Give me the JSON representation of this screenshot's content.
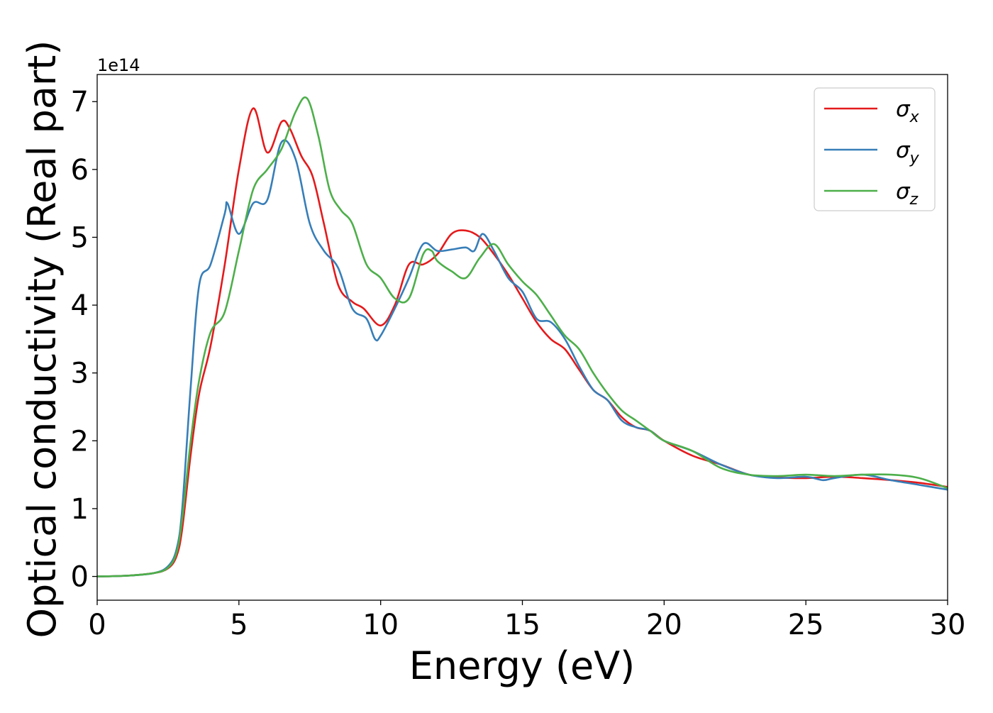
{
  "chart_data": {
    "type": "line",
    "xlabel": "Energy (eV)",
    "ylabel": "Optical conductivity (Real part)",
    "y_multiplier": "1e14",
    "xlim": [
      0,
      30
    ],
    "ylim": [
      -0.35,
      7.4
    ],
    "xticks": [
      "0",
      "5",
      "10",
      "15",
      "20",
      "25",
      "30"
    ],
    "yticks": [
      "0",
      "1",
      "2",
      "3",
      "4",
      "5",
      "6",
      "7"
    ],
    "grid": false,
    "legend_position": "top-right",
    "series": [
      {
        "name": "σx",
        "legend_base": "σ",
        "legend_sub": "x",
        "color": "#e41a1c",
        "x": [
          0,
          1,
          2,
          2.5,
          2.8,
          3.0,
          3.3,
          3.6,
          4.0,
          4.5,
          5.0,
          5.5,
          6.0,
          6.5,
          6.8,
          7.2,
          7.6,
          8.0,
          8.5,
          9.0,
          9.4,
          10.0,
          10.5,
          11.0,
          11.5,
          12.0,
          12.5,
          13.0,
          13.5,
          14.0,
          14.5,
          15.0,
          15.5,
          16.0,
          16.5,
          17.0,
          17.5,
          18.0,
          18.5,
          19.0,
          19.5,
          20.0,
          21.0,
          22.0,
          23.0,
          24.0,
          25.0,
          26.0,
          27.0,
          28.0,
          29.0,
          30.0
        ],
        "y": [
          0,
          0.01,
          0.05,
          0.12,
          0.3,
          0.7,
          1.8,
          2.7,
          3.4,
          4.6,
          6.0,
          6.9,
          6.25,
          6.7,
          6.6,
          6.2,
          5.9,
          5.2,
          4.3,
          4.05,
          3.95,
          3.7,
          4.0,
          4.6,
          4.6,
          4.75,
          5.05,
          5.1,
          5.0,
          4.75,
          4.45,
          4.1,
          3.75,
          3.5,
          3.35,
          3.05,
          2.75,
          2.6,
          2.35,
          2.2,
          2.15,
          2.0,
          1.78,
          1.65,
          1.5,
          1.46,
          1.45,
          1.47,
          1.45,
          1.42,
          1.38,
          1.32
        ]
      },
      {
        "name": "σy",
        "legend_base": "σ",
        "legend_sub": "y",
        "color": "#377eb8",
        "x": [
          0,
          1,
          2,
          2.5,
          2.8,
          3.0,
          3.3,
          3.6,
          4.0,
          4.5,
          4.6,
          5.0,
          5.5,
          6.0,
          6.5,
          7.0,
          7.5,
          8.0,
          8.5,
          9.0,
          9.5,
          9.8,
          10.0,
          10.5,
          11.0,
          11.5,
          12.0,
          12.5,
          13.0,
          13.3,
          13.6,
          14.0,
          14.5,
          15.0,
          15.5,
          16.0,
          16.5,
          17.0,
          17.5,
          18.0,
          18.5,
          19.0,
          19.5,
          20.0,
          21.0,
          22.0,
          23.0,
          24.0,
          25.0,
          25.6,
          26.0,
          27.0,
          28.0,
          29.0,
          30.0
        ],
        "y": [
          0,
          0.01,
          0.05,
          0.15,
          0.4,
          1.0,
          2.8,
          4.3,
          4.6,
          5.35,
          5.5,
          5.05,
          5.5,
          5.55,
          6.4,
          6.15,
          5.2,
          4.8,
          4.55,
          3.95,
          3.8,
          3.5,
          3.55,
          3.95,
          4.4,
          4.9,
          4.8,
          4.82,
          4.85,
          4.8,
          5.05,
          4.8,
          4.4,
          4.2,
          3.8,
          3.75,
          3.5,
          3.1,
          2.75,
          2.6,
          2.3,
          2.2,
          2.15,
          2.0,
          1.85,
          1.65,
          1.5,
          1.45,
          1.47,
          1.42,
          1.45,
          1.5,
          1.42,
          1.35,
          1.28
        ]
      },
      {
        "name": "σz",
        "legend_base": "σ",
        "legend_sub": "z",
        "color": "#4daf4a",
        "x": [
          0,
          1,
          2,
          2.5,
          2.8,
          3.0,
          3.3,
          3.6,
          4.0,
          4.5,
          5.0,
          5.5,
          6.0,
          6.5,
          7.0,
          7.4,
          7.8,
          8.2,
          8.6,
          9.0,
          9.5,
          10.0,
          10.5,
          11.0,
          11.5,
          11.8,
          12.0,
          12.5,
          13.0,
          13.5,
          14.0,
          14.5,
          15.0,
          15.5,
          16.0,
          16.5,
          17.0,
          17.5,
          18.0,
          18.5,
          19.0,
          19.5,
          20.0,
          21.0,
          22.0,
          23.0,
          24.0,
          25.0,
          26.0,
          27.0,
          28.0,
          29.0,
          30.0
        ],
        "y": [
          0,
          0.01,
          0.05,
          0.13,
          0.35,
          0.85,
          2.0,
          2.9,
          3.6,
          3.9,
          4.8,
          5.7,
          6.0,
          6.3,
          6.85,
          7.05,
          6.5,
          5.7,
          5.4,
          5.2,
          4.6,
          4.4,
          4.1,
          4.1,
          4.75,
          4.8,
          4.65,
          4.5,
          4.4,
          4.7,
          4.9,
          4.6,
          4.35,
          4.15,
          3.85,
          3.55,
          3.35,
          3.0,
          2.7,
          2.45,
          2.3,
          2.15,
          2.0,
          1.85,
          1.6,
          1.5,
          1.48,
          1.5,
          1.48,
          1.5,
          1.5,
          1.45,
          1.3
        ]
      }
    ]
  }
}
